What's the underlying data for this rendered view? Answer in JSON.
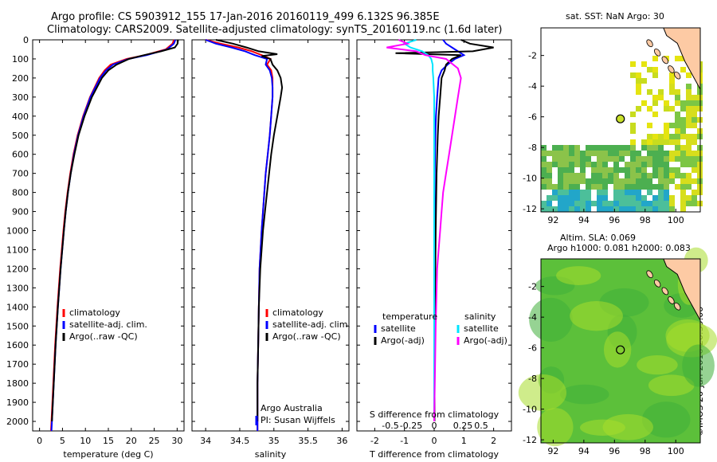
{
  "header": {
    "line1": "Argo profile: CS 5903912_155 17-Jan-2016 20160119_499 6.132S 96.385E",
    "line2": "Climatology: CARS2009. Satellite-adjusted climatology: synTS_20160119.nc (1.6d later)"
  },
  "colors": {
    "climatology": "#ff0000",
    "satellite": "#0000ff",
    "argo": "#000000",
    "argo_adj_s": "#ff00ff",
    "satellite_s": "#00e5ff",
    "land": "#fdcaa4",
    "ocean_bg": "#ffffff"
  },
  "legend_profile": [
    "climatology",
    "satellite-adj. clim.",
    "Argo(..raw -QC)"
  ],
  "legend_diff": {
    "temperature_title": "temperature",
    "salinity_title": "salinity",
    "items": [
      "satellite",
      "Argo(-adj)",
      "satellite",
      "Argo(-adj)"
    ]
  },
  "credits": {
    "line1": "Argo Australia",
    "line2": "PI: Susan Wijffels"
  },
  "diff_labels": {
    "s_title": "S difference from climatology",
    "t_title": "T difference from climatology"
  },
  "map_top": {
    "title": "sat. SST: NaN Argo: 30"
  },
  "map_bottom": {
    "title1": "Altim. SLA: 0.069",
    "title2": "Argo h1000: 0.081 h2000: 0.083"
  },
  "timestamp": "©IMOS 26-Jan-2016 20:39:00",
  "chart_data": [
    {
      "type": "line",
      "xlabel": "temperature (deg C)",
      "ylim": [
        2050,
        0
      ],
      "xlim": [
        -1.5,
        31.5
      ],
      "xticks": [
        0,
        5,
        10,
        15,
        20,
        25,
        30
      ],
      "yticks": [
        0,
        100,
        200,
        300,
        400,
        500,
        600,
        700,
        800,
        900,
        1000,
        1100,
        1200,
        1300,
        1400,
        1500,
        1600,
        1700,
        1800,
        1900,
        2000
      ],
      "series": [
        {
          "name": "climatology",
          "color": "#ff0000",
          "depth": [
            0,
            20,
            50,
            80,
            100,
            130,
            160,
            200,
            300,
            400,
            500,
            600,
            700,
            800,
            900,
            1000,
            1200,
            1400,
            1600,
            1800,
            2000,
            2050
          ],
          "values": [
            29.3,
            29.0,
            27.5,
            23.0,
            19.0,
            15.5,
            14.2,
            13.0,
            11.0,
            9.5,
            8.3,
            7.4,
            6.7,
            6.1,
            5.6,
            5.2,
            4.5,
            3.9,
            3.4,
            3.0,
            2.6,
            2.5
          ]
        },
        {
          "name": "satellite-adj. clim.",
          "color": "#0000ff",
          "depth": [
            0,
            20,
            50,
            80,
            100,
            130,
            160,
            200,
            300,
            400,
            500,
            600,
            700,
            800,
            900,
            1000,
            1200,
            1400,
            1600,
            1800,
            2000,
            2050
          ],
          "values": [
            29.6,
            29.3,
            27.8,
            23.4,
            19.4,
            16.0,
            14.5,
            13.2,
            11.1,
            9.6,
            8.4,
            7.5,
            6.8,
            6.2,
            5.7,
            5.3,
            4.6,
            4.0,
            3.5,
            3.1,
            2.7,
            2.6
          ]
        },
        {
          "name": "Argo(..raw -QC)",
          "color": "#000000",
          "depth": [
            0,
            20,
            40,
            60,
            80,
            100,
            130,
            160,
            200,
            300,
            400,
            500,
            600,
            700,
            800,
            900,
            1000,
            1200,
            1400,
            1600,
            1800,
            2000
          ],
          "values": [
            30.2,
            30.1,
            29.5,
            26.5,
            22.8,
            19.5,
            16.8,
            15.0,
            13.6,
            11.4,
            9.8,
            8.5,
            7.6,
            6.8,
            6.2,
            5.7,
            5.3,
            4.6,
            4.0,
            3.5,
            3.1,
            2.7
          ]
        }
      ]
    },
    {
      "type": "line",
      "xlabel": "salinity",
      "ylim": [
        2050,
        0
      ],
      "xlim": [
        33.8,
        36.1
      ],
      "xticks": [
        34,
        34.5,
        35,
        35.5,
        36
      ],
      "series": [
        {
          "name": "climatology",
          "color": "#ff0000",
          "depth": [
            0,
            20,
            40,
            60,
            80,
            100,
            130,
            160,
            200,
            250,
            300,
            400,
            500,
            600,
            700,
            800,
            900,
            1000,
            1200,
            1400,
            1600,
            1800,
            2000,
            2050
          ],
          "values": [
            34.0,
            34.22,
            34.48,
            34.68,
            34.82,
            34.95,
            34.9,
            34.96,
            34.98,
            34.98,
            34.98,
            34.96,
            34.94,
            34.91,
            34.88,
            34.86,
            34.84,
            34.82,
            34.79,
            34.78,
            34.77,
            34.76,
            34.76,
            34.76
          ]
        },
        {
          "name": "satellite-adj. clim.",
          "color": "#0000ff",
          "depth": [
            0,
            20,
            40,
            60,
            80,
            100,
            130,
            160,
            200,
            250,
            300,
            400,
            500,
            600,
            700,
            800,
            900,
            1000,
            1200,
            1400,
            1600,
            1800,
            2000,
            2050
          ],
          "values": [
            34.0,
            34.15,
            34.38,
            34.58,
            34.72,
            34.9,
            34.88,
            34.94,
            34.97,
            34.98,
            34.98,
            34.96,
            34.94,
            34.91,
            34.88,
            34.86,
            34.84,
            34.82,
            34.79,
            34.78,
            34.77,
            34.76,
            34.76,
            34.76
          ]
        },
        {
          "name": "Argo(..raw -QC)",
          "color": "#000000",
          "depth": [
            0,
            20,
            40,
            60,
            75,
            85,
            100,
            130,
            160,
            200,
            250,
            300,
            400,
            500,
            600,
            700,
            800,
            900,
            1000,
            1200,
            1400,
            1600,
            1800,
            2000
          ],
          "values": [
            34.15,
            34.4,
            34.6,
            34.78,
            35.05,
            34.82,
            34.95,
            34.98,
            35.05,
            35.1,
            35.12,
            35.1,
            35.05,
            35.0,
            34.96,
            34.93,
            34.9,
            34.87,
            34.84,
            34.8,
            34.78,
            34.77,
            34.76,
            34.76
          ]
        }
      ]
    },
    {
      "type": "line",
      "xlabel": "T difference from climatology",
      "xlabel_top": "S difference from climatology",
      "ylim": [
        2050,
        0
      ],
      "xlim": [
        -2.6,
        2.6
      ],
      "xticks": [
        -2,
        -1,
        0,
        1,
        2
      ],
      "xticks_s": [
        "-0.5",
        "-0.25",
        "0",
        "0.25",
        "0.5"
      ],
      "series": [
        {
          "name": "satellite (temperature)",
          "color": "#0000ff",
          "depth": [
            0,
            20,
            40,
            60,
            80,
            100,
            130,
            160,
            200,
            300,
            400,
            500,
            700,
            1000,
            1500,
            2000
          ],
          "values": [
            0.3,
            0.4,
            0.6,
            0.8,
            1.0,
            0.7,
            0.45,
            0.25,
            0.15,
            0.1,
            0.06,
            0.04,
            0.02,
            0.01,
            0.0,
            0.0
          ]
        },
        {
          "name": "Argo(-adj) (temperature)",
          "color": "#000000",
          "depth": [
            0,
            20,
            40,
            60,
            70,
            80,
            100,
            130,
            160,
            200,
            300,
            400,
            500,
            700,
            1000,
            1500,
            2000
          ],
          "values": [
            0.9,
            1.2,
            2.0,
            1.3,
            -1.3,
            0.9,
            0.6,
            0.4,
            0.35,
            0.25,
            0.2,
            0.15,
            0.12,
            0.08,
            0.05,
            0.02,
            0.01
          ]
        },
        {
          "name": "satellite (salinity)",
          "color": "#00e5ff",
          "depth": [
            0,
            20,
            40,
            60,
            80,
            100,
            130,
            160,
            200,
            300,
            500,
            1000,
            2000
          ],
          "values": [
            -0.6,
            -1.0,
            -0.8,
            -0.4,
            -0.2,
            -0.1,
            -0.05,
            -0.05,
            -0.03,
            0.0,
            0.0,
            0.0,
            0.0
          ]
        },
        {
          "name": "Argo(-adj) (salinity)",
          "color": "#ff00ff",
          "depth": [
            0,
            20,
            40,
            60,
            80,
            100,
            150,
            200,
            300,
            400,
            500,
            600,
            700,
            800,
            900,
            1000,
            1200,
            1500,
            2000
          ],
          "values": [
            -1.2,
            -0.9,
            -1.6,
            -0.6,
            -0.3,
            0.4,
            0.8,
            0.9,
            0.8,
            0.7,
            0.6,
            0.5,
            0.4,
            0.3,
            0.25,
            0.2,
            0.1,
            0.05,
            0.0
          ]
        }
      ]
    },
    {
      "type": "heatmap",
      "title": "sat. SST: NaN Argo: 30",
      "xticks": [
        92,
        94,
        96,
        98,
        100
      ],
      "yticks": [
        -2,
        -4,
        -6,
        -8,
        -10,
        -12
      ],
      "xlim": [
        91.2,
        101.6
      ],
      "ylim": [
        -12.2,
        -0.2
      ],
      "argo_position": [
        96.385,
        -6.132
      ]
    },
    {
      "type": "heatmap",
      "title": "Altim. SLA: 0.069",
      "xticks": [
        92,
        94,
        96,
        98,
        100
      ],
      "yticks": [
        -2,
        -4,
        -6,
        -8,
        -10,
        -12
      ],
      "xlim": [
        91.2,
        101.6
      ],
      "ylim": [
        -12.2,
        -0.2
      ],
      "argo_position": [
        96.385,
        -6.132
      ]
    }
  ]
}
